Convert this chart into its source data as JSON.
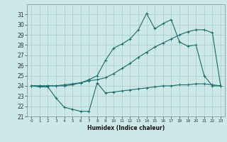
{
  "xlabel": "Humidex (Indice chaleur)",
  "bg_color": "#cce8e8",
  "grid_color": "#aacccc",
  "line_color": "#1a6b6b",
  "ylim": [
    21,
    32
  ],
  "xlim": [
    -0.5,
    23.5
  ],
  "yticks": [
    21,
    22,
    23,
    24,
    25,
    26,
    27,
    28,
    29,
    30,
    31
  ],
  "xticks": [
    0,
    1,
    2,
    3,
    4,
    5,
    6,
    7,
    8,
    9,
    10,
    11,
    12,
    13,
    14,
    15,
    16,
    17,
    18,
    19,
    20,
    21,
    22,
    23
  ],
  "line1_x": [
    0,
    1,
    2,
    3,
    4,
    5,
    6,
    7,
    8,
    9,
    10,
    11,
    12,
    13,
    14,
    15,
    16,
    17,
    18,
    19,
    20,
    21,
    22,
    23
  ],
  "line1_y": [
    24,
    23.9,
    23.9,
    22.8,
    21.9,
    21.7,
    21.5,
    21.5,
    24.3,
    23.3,
    23.4,
    23.5,
    23.6,
    23.7,
    23.8,
    23.9,
    24.0,
    24.0,
    24.1,
    24.1,
    24.2,
    24.2,
    24.1,
    24.0
  ],
  "line2_x": [
    0,
    1,
    2,
    3,
    4,
    5,
    6,
    7,
    8,
    9,
    10,
    11,
    12,
    13,
    14,
    15,
    16,
    17,
    18,
    19,
    20,
    21,
    22,
    23
  ],
  "line2_y": [
    24,
    24,
    24,
    24,
    24.1,
    24.2,
    24.3,
    24.5,
    24.6,
    24.8,
    25.2,
    25.7,
    26.2,
    26.8,
    27.3,
    27.8,
    28.2,
    28.6,
    29.0,
    29.3,
    29.5,
    29.5,
    29.2,
    24.0
  ],
  "line3_x": [
    0,
    1,
    2,
    3,
    4,
    5,
    6,
    7,
    8,
    9,
    10,
    11,
    12,
    13,
    14,
    15,
    16,
    17,
    18,
    19,
    20,
    21,
    22,
    23
  ],
  "line3_y": [
    24,
    24,
    24,
    24,
    24,
    24.1,
    24.3,
    24.6,
    25.0,
    26.5,
    27.7,
    28.1,
    28.6,
    29.5,
    31.1,
    29.6,
    30.1,
    30.5,
    28.3,
    27.9,
    28.0,
    25.0,
    24.0,
    24.0
  ]
}
